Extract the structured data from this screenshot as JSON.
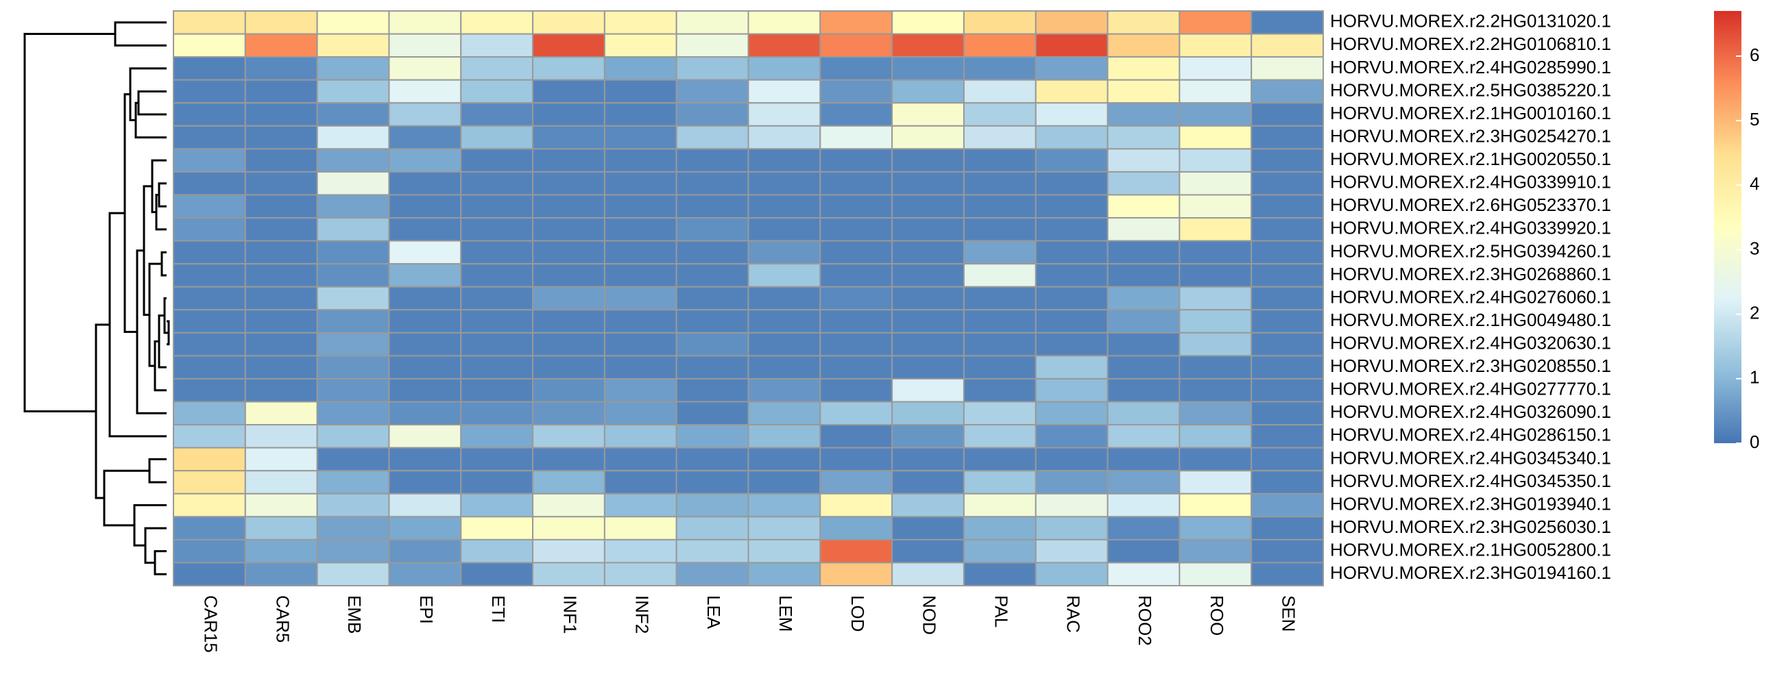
{
  "chart_data": {
    "type": "heatmap",
    "title": "",
    "xlabel": "",
    "ylabel": "",
    "columns": [
      "CAR15",
      "CAR5",
      "EMB",
      "EPI",
      "ETI",
      "INF1",
      "INF2",
      "LEA",
      "LEM",
      "LOD",
      "NOD",
      "PAL",
      "RAC",
      "ROO2",
      "ROO",
      "SEN"
    ],
    "rows": [
      "HORVU.MOREX.r2.2HG0131020.1",
      "HORVU.MOREX.r2.2HG0106810.1",
      "HORVU.MOREX.r2.4HG0285990.1",
      "HORVU.MOREX.r2.5HG0385220.1",
      "HORVU.MOREX.r2.1HG0010160.1",
      "HORVU.MOREX.r2.3HG0254270.1",
      "HORVU.MOREX.r2.1HG0020550.1",
      "HORVU.MOREX.r2.4HG0339910.1",
      "HORVU.MOREX.r2.6HG0523370.1",
      "HORVU.MOREX.r2.4HG0339920.1",
      "HORVU.MOREX.r2.5HG0394260.1",
      "HORVU.MOREX.r2.3HG0268860.1",
      "HORVU.MOREX.r2.4HG0276060.1",
      "HORVU.MOREX.r2.1HG0049480.1",
      "HORVU.MOREX.r2.4HG0320630.1",
      "HORVU.MOREX.r2.3HG0208550.1",
      "HORVU.MOREX.r2.4HG0277770.1",
      "HORVU.MOREX.r2.4HG0326090.1",
      "HORVU.MOREX.r2.4HG0286150.1",
      "HORVU.MOREX.r2.4HG0345340.1",
      "HORVU.MOREX.r2.4HG0345350.1",
      "HORVU.MOREX.r2.3HG0193940.1",
      "HORVU.MOREX.r2.3HG0256030.1",
      "HORVU.MOREX.r2.1HG0052800.1",
      "HORVU.MOREX.r2.3HG0194160.1"
    ],
    "values": [
      [
        4.2,
        4.3,
        3.3,
        3.1,
        3.6,
        3.9,
        3.7,
        3.0,
        3.2,
        5.4,
        3.4,
        4.5,
        4.9,
        4.1,
        5.5,
        0.2
      ],
      [
        3.3,
        5.6,
        3.8,
        2.6,
        1.8,
        6.3,
        3.6,
        2.7,
        6.2,
        5.7,
        6.2,
        5.6,
        6.4,
        4.7,
        3.9,
        4.0
      ],
      [
        0.2,
        0.3,
        0.9,
        2.9,
        1.4,
        1.3,
        0.8,
        1.2,
        1.0,
        0.3,
        0.4,
        0.4,
        0.7,
        3.6,
        2.2,
        2.7
      ],
      [
        0.2,
        0.2,
        1.3,
        2.3,
        1.3,
        0.2,
        0.2,
        0.6,
        2.2,
        0.5,
        1.0,
        2.0,
        3.9,
        3.6,
        2.3,
        0.7
      ],
      [
        0.2,
        0.2,
        0.4,
        1.4,
        0.3,
        0.2,
        0.2,
        0.5,
        2.0,
        0.3,
        3.1,
        1.5,
        2.1,
        0.7,
        0.7,
        0.2
      ],
      [
        0.2,
        0.2,
        2.1,
        0.3,
        1.2,
        0.3,
        0.3,
        1.4,
        1.8,
        2.4,
        3.0,
        1.9,
        1.3,
        1.5,
        3.5,
        0.2
      ],
      [
        0.6,
        0.2,
        0.7,
        0.8,
        0.2,
        0.2,
        0.2,
        0.2,
        0.2,
        0.2,
        0.2,
        0.2,
        0.4,
        1.9,
        1.8,
        0.2
      ],
      [
        0.2,
        0.2,
        2.6,
        0.2,
        0.2,
        0.2,
        0.2,
        0.2,
        0.2,
        0.2,
        0.2,
        0.2,
        0.2,
        1.4,
        2.7,
        0.2
      ],
      [
        0.6,
        0.2,
        0.7,
        0.2,
        0.2,
        0.2,
        0.2,
        0.2,
        0.2,
        0.2,
        0.2,
        0.2,
        0.2,
        3.3,
        2.9,
        0.2
      ],
      [
        0.5,
        0.2,
        1.3,
        0.2,
        0.2,
        0.2,
        0.2,
        0.4,
        0.2,
        0.2,
        0.2,
        0.2,
        0.2,
        2.6,
        3.8,
        0.2
      ],
      [
        0.2,
        0.2,
        0.4,
        2.3,
        0.2,
        0.2,
        0.2,
        0.2,
        0.5,
        0.2,
        0.2,
        0.7,
        0.2,
        0.2,
        0.2,
        0.2
      ],
      [
        0.2,
        0.2,
        0.4,
        0.9,
        0.2,
        0.2,
        0.2,
        0.2,
        1.3,
        0.2,
        0.2,
        2.5,
        0.2,
        0.2,
        0.2,
        0.2
      ],
      [
        0.2,
        0.2,
        1.5,
        0.2,
        0.2,
        0.6,
        0.6,
        0.2,
        0.2,
        0.3,
        0.2,
        0.2,
        0.2,
        0.8,
        1.4,
        0.2
      ],
      [
        0.2,
        0.2,
        0.5,
        0.2,
        0.2,
        0.2,
        0.2,
        0.2,
        0.2,
        0.2,
        0.2,
        0.2,
        0.2,
        0.6,
        1.3,
        0.2
      ],
      [
        0.2,
        0.2,
        0.7,
        0.2,
        0.2,
        0.2,
        0.2,
        0.4,
        0.2,
        0.2,
        0.2,
        0.2,
        0.2,
        0.2,
        1.3,
        0.2
      ],
      [
        0.2,
        0.2,
        0.5,
        0.2,
        0.2,
        0.2,
        0.2,
        0.2,
        0.2,
        0.2,
        0.2,
        0.2,
        1.3,
        0.2,
        0.2,
        0.2
      ],
      [
        0.2,
        0.2,
        0.5,
        0.2,
        0.2,
        0.4,
        0.6,
        0.2,
        0.5,
        0.2,
        2.2,
        0.2,
        1.1,
        0.2,
        0.2,
        0.2
      ],
      [
        1.0,
        3.1,
        0.6,
        0.4,
        0.4,
        0.5,
        0.6,
        0.2,
        0.9,
        1.3,
        1.2,
        1.5,
        0.9,
        1.2,
        0.7,
        0.2
      ],
      [
        1.4,
        1.9,
        1.3,
        2.8,
        0.8,
        1.4,
        1.2,
        0.8,
        1.1,
        0.2,
        0.5,
        1.4,
        0.4,
        1.4,
        1.2,
        0.2
      ],
      [
        4.5,
        2.2,
        0.2,
        0.2,
        0.2,
        0.2,
        0.2,
        0.2,
        0.2,
        0.2,
        0.2,
        0.2,
        0.2,
        0.2,
        0.2,
        0.2
      ],
      [
        4.3,
        2.0,
        0.9,
        0.2,
        0.2,
        1.0,
        0.2,
        0.2,
        0.2,
        0.7,
        0.2,
        1.3,
        0.6,
        0.7,
        2.1,
        0.2
      ],
      [
        3.7,
        2.8,
        1.3,
        2.0,
        1.1,
        2.8,
        1.1,
        0.9,
        1.0,
        3.6,
        1.3,
        2.9,
        2.6,
        2.1,
        3.4,
        0.6
      ],
      [
        0.4,
        1.3,
        0.7,
        0.8,
        3.3,
        3.2,
        3.2,
        1.3,
        1.4,
        0.8,
        0.2,
        0.9,
        1.2,
        0.3,
        0.9,
        0.2
      ],
      [
        0.4,
        0.8,
        0.7,
        0.5,
        1.3,
        1.9,
        1.6,
        1.5,
        1.5,
        6.0,
        0.2,
        0.9,
        1.7,
        0.2,
        0.7,
        0.2
      ],
      [
        0.2,
        0.5,
        1.7,
        0.6,
        0.2,
        1.5,
        1.5,
        0.7,
        0.9,
        4.8,
        1.9,
        0.2,
        1.1,
        2.3,
        2.5,
        0.2
      ]
    ],
    "color_scale": {
      "min": 0,
      "max": 6.7,
      "stops": [
        "#4575B4",
        "#91BFDB",
        "#E0F3F8",
        "#FFFFBF",
        "#FEE090",
        "#FC8D59",
        "#D73027"
      ]
    },
    "legend": {
      "placement": "right",
      "ticks": [
        0,
        1,
        2,
        3,
        4,
        5,
        6
      ],
      "tick_labels": [
        "0",
        "1",
        "2",
        "3",
        "4",
        "5",
        "6"
      ]
    },
    "row_dendrogram": true
  }
}
